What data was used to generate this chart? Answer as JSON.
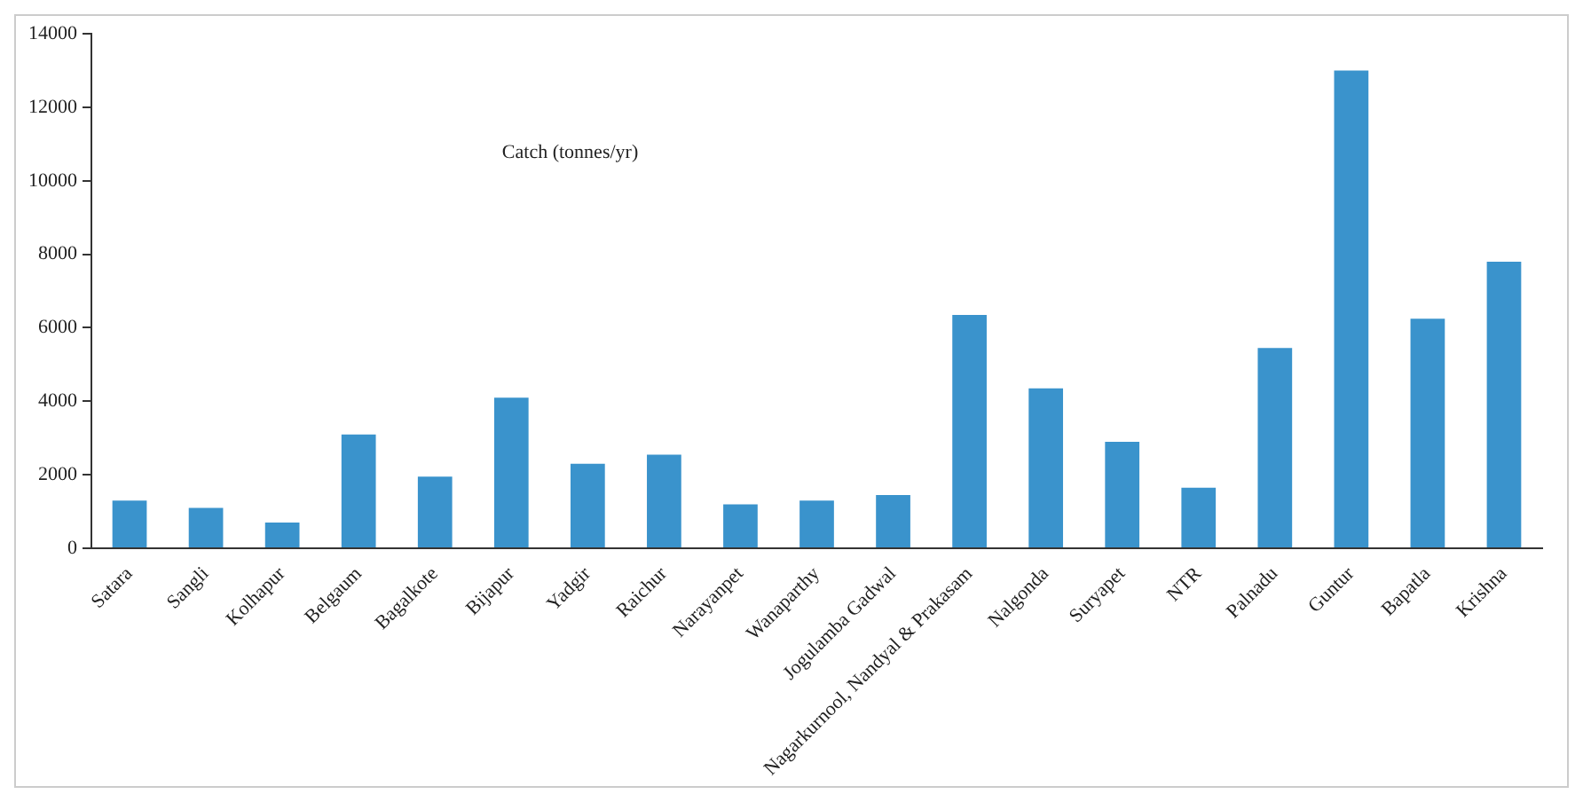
{
  "chart_data": {
    "type": "bar",
    "categories": [
      "Satara",
      "Sangli",
      "Kolhapur",
      "Belgaum",
      "Bagalkote",
      "Bijapur",
      "Yadgir",
      "Raichur",
      "Narayanpet",
      "Wanaparthy",
      "Jogulamba Gadwal",
      "Nagarkurnool, Nandyal & Prakasam",
      "Nalgonda",
      "Suryapet",
      "NTR",
      "Palnadu",
      "Guntur",
      "Bapatla",
      "Krishna"
    ],
    "values": [
      1300,
      1100,
      700,
      3100,
      1950,
      4100,
      2300,
      2550,
      1200,
      1300,
      1450,
      6350,
      4350,
      2900,
      1650,
      5450,
      13000,
      6250,
      7800
    ],
    "color": "#3a93cc",
    "ylim": [
      0,
      14000
    ],
    "yticks": [
      0,
      2000,
      4000,
      6000,
      8000,
      10000,
      12000,
      14000
    ],
    "annotations": [
      "Catch (tonnes/yr)"
    ],
    "grid": false,
    "legend": false
  }
}
